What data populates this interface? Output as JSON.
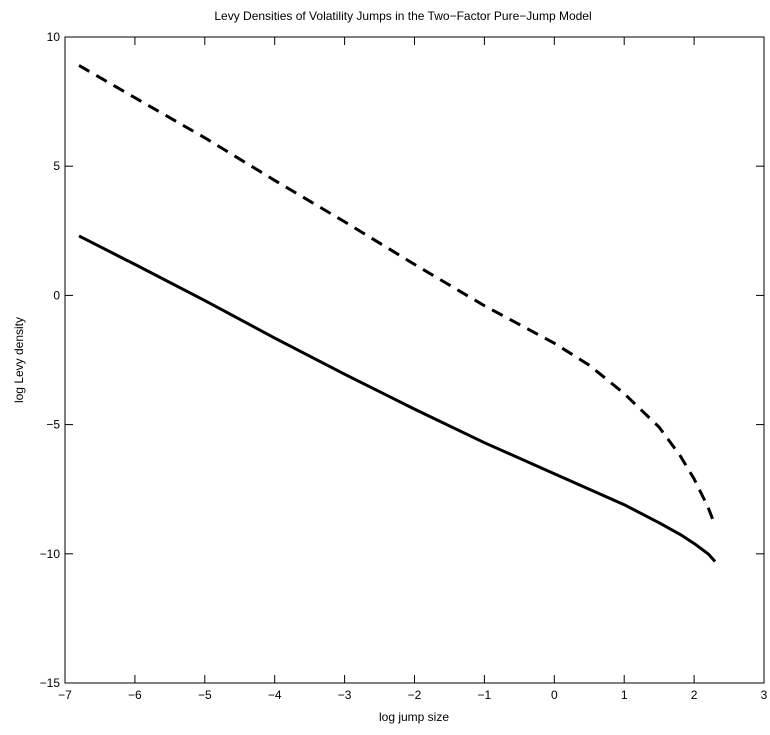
{
  "chart_data": {
    "type": "line",
    "title": "Levy Densities of Volatility Jumps in the Two−Factor Pure−Jump Model",
    "xlabel": "log jump size",
    "ylabel": "log Levy density",
    "xlim": [
      -7,
      3
    ],
    "ylim": [
      -15,
      10
    ],
    "xticks": [
      -7,
      -6,
      -5,
      -4,
      -3,
      -2,
      -1,
      0,
      1,
      2,
      3
    ],
    "yticks": [
      -15,
      -10,
      -5,
      0,
      5,
      10
    ],
    "xtick_labels": [
      "−7",
      "−6",
      "−5",
      "−4",
      "−3",
      "−2",
      "−1",
      "0",
      "1",
      "2",
      "3"
    ],
    "ytick_labels": [
      "−15",
      "−10",
      "−5",
      "0",
      "5",
      "10"
    ],
    "grid": false,
    "legend": "none",
    "series": [
      {
        "style": "solid",
        "color": "#000000",
        "x": [
          -6.8,
          -6,
          -5,
          -4,
          -3,
          -2,
          -1,
          0,
          0.5,
          1,
          1.5,
          1.8,
          2.0,
          2.2,
          2.3
        ],
        "y": [
          2.3,
          1.2,
          -0.2,
          -1.65,
          -3.05,
          -4.4,
          -5.7,
          -6.9,
          -7.5,
          -8.1,
          -8.8,
          -9.25,
          -9.6,
          -10.0,
          -10.3
        ]
      },
      {
        "style": "dashed",
        "color": "#000000",
        "x": [
          -6.8,
          -6,
          -5,
          -4,
          -3,
          -2,
          -1,
          0,
          0.5,
          1,
          1.5,
          1.8,
          2.0,
          2.2,
          2.3
        ],
        "y": [
          8.9,
          7.65,
          6.1,
          4.45,
          2.85,
          1.2,
          -0.4,
          -1.85,
          -2.7,
          -3.8,
          -5.1,
          -6.2,
          -7.1,
          -8.2,
          -8.9
        ]
      }
    ]
  }
}
